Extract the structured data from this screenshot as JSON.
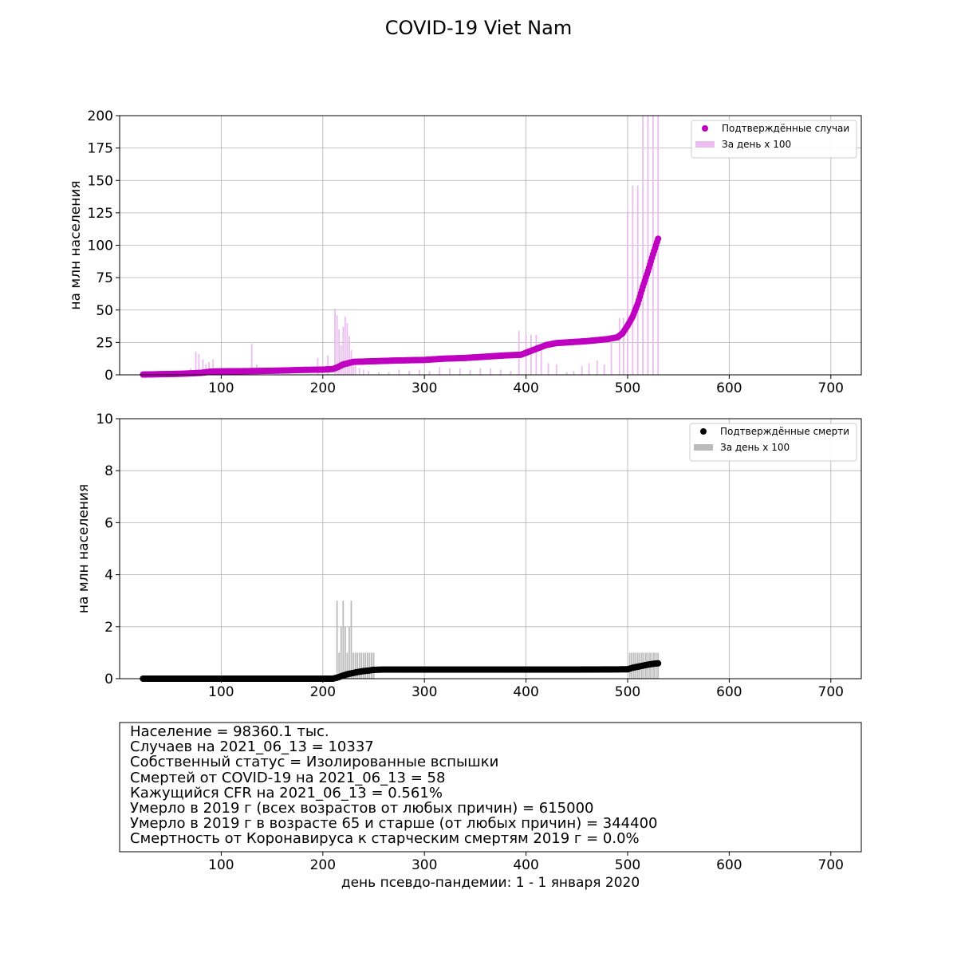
{
  "figure": {
    "title": "COVID-19 Viet Nam",
    "xlabel": "день псевдо-пандемии: 1 - 1 января 2020"
  },
  "colors": {
    "cases_points": "#c000c0",
    "cases_bars": "#eabcef",
    "deaths_points": "#000000",
    "deaths_bars": "#bbbbbb",
    "grid": "#b0b0b0"
  },
  "info_lines": [
    "Население = 98360.1 тыс.",
    "Случаев на 2021_06_13 = 10337",
    "Собственный статус = Изолированные вспышки",
    "Смертей от COVID-19 на 2021_06_13 = 58",
    "Кажущийся CFR на 2021_06_13 = 0.561%",
    "Умерло в 2019 г (всех возрастов от любых причин) = 615000",
    "Умерло в 2019 г в возрасте 65 и старше (от любых причин) = 344400",
    "Смертность от Коронавируса к старческим смертям 2019 г = 0.0%"
  ],
  "chart_data": [
    {
      "type": "scatter+bar",
      "ylabel": "на млн населения",
      "xlim": [
        0,
        730
      ],
      "ylim": [
        0,
        200
      ],
      "xticks": [
        100,
        200,
        300,
        400,
        500,
        600,
        700
      ],
      "yticks": [
        0,
        25,
        50,
        75,
        100,
        125,
        150,
        175,
        200
      ],
      "grid": true,
      "legend_position": "top-right",
      "series": [
        {
          "name": "Подтверждённые случаи",
          "kind": "cumulative",
          "points": [
            [
              23,
              0.2
            ],
            [
              40,
              0.5
            ],
            [
              60,
              0.8
            ],
            [
              80,
              1.5
            ],
            [
              90,
              2.5
            ],
            [
              100,
              2.7
            ],
            [
              120,
              2.8
            ],
            [
              140,
              3.0
            ],
            [
              160,
              3.3
            ],
            [
              180,
              3.8
            ],
            [
              200,
              4.0
            ],
            [
              210,
              4.5
            ],
            [
              215,
              6
            ],
            [
              220,
              8
            ],
            [
              230,
              10
            ],
            [
              250,
              10.5
            ],
            [
              270,
              11
            ],
            [
              300,
              11.5
            ],
            [
              320,
              12.5
            ],
            [
              340,
              13
            ],
            [
              360,
              14
            ],
            [
              380,
              15
            ],
            [
              395,
              15.5
            ],
            [
              400,
              17
            ],
            [
              410,
              20
            ],
            [
              420,
              23
            ],
            [
              430,
              24.5
            ],
            [
              440,
              25
            ],
            [
              460,
              26
            ],
            [
              480,
              27.5
            ],
            [
              490,
              29
            ],
            [
              495,
              32
            ],
            [
              500,
              38
            ],
            [
              505,
              45
            ],
            [
              510,
              55
            ],
            [
              515,
              68
            ],
            [
              520,
              80
            ],
            [
              525,
              93
            ],
            [
              530,
              105
            ]
          ]
        },
        {
          "name": "За день x 100",
          "kind": "daily_bars",
          "bars": [
            [
              70,
              5
            ],
            [
              75,
              18
            ],
            [
              78,
              16
            ],
            [
              82,
              12
            ],
            [
              85,
              8
            ],
            [
              88,
              10
            ],
            [
              92,
              12
            ],
            [
              130,
              24
            ],
            [
              135,
              8
            ],
            [
              195,
              13
            ],
            [
              205,
              15
            ],
            [
              212,
              51
            ],
            [
              214,
              46
            ],
            [
              216,
              35
            ],
            [
              218,
              23
            ],
            [
              220,
              37
            ],
            [
              222,
              45
            ],
            [
              224,
              40
            ],
            [
              226,
              30
            ],
            [
              228,
              19
            ],
            [
              230,
              12
            ],
            [
              232,
              8
            ],
            [
              236,
              5
            ],
            [
              240,
              4
            ],
            [
              245,
              3
            ],
            [
              255,
              2
            ],
            [
              265,
              2
            ],
            [
              275,
              4
            ],
            [
              285,
              3
            ],
            [
              295,
              4
            ],
            [
              305,
              3
            ],
            [
              315,
              6
            ],
            [
              325,
              5
            ],
            [
              335,
              5
            ],
            [
              345,
              4
            ],
            [
              355,
              5
            ],
            [
              365,
              5
            ],
            [
              375,
              4
            ],
            [
              385,
              3
            ],
            [
              393,
              34
            ],
            [
              400,
              31
            ],
            [
              405,
              31
            ],
            [
              410,
              31
            ],
            [
              415,
              20
            ],
            [
              422,
              9
            ],
            [
              430,
              8
            ],
            [
              440,
              2
            ],
            [
              447,
              3
            ],
            [
              455,
              7
            ],
            [
              462,
              9
            ],
            [
              470,
              11
            ],
            [
              477,
              8
            ],
            [
              484,
              25
            ],
            [
              492,
              44
            ],
            [
              496,
              44
            ],
            [
              500,
              125
            ],
            [
              505,
              146
            ],
            [
              510,
              146
            ],
            [
              515,
              200
            ],
            [
              520,
              200
            ],
            [
              525,
              200
            ],
            [
              530,
              200
            ]
          ]
        }
      ]
    },
    {
      "type": "scatter+bar",
      "ylabel": "на млн населения",
      "xlim": [
        0,
        730
      ],
      "ylim": [
        0,
        10
      ],
      "xticks": [
        100,
        200,
        300,
        400,
        500,
        600,
        700
      ],
      "yticks": [
        0,
        2,
        4,
        6,
        8,
        10
      ],
      "grid": true,
      "legend_position": "top-right",
      "series": [
        {
          "name": "Подтверждённые смерти",
          "kind": "cumulative",
          "points": [
            [
              23,
              0
            ],
            [
              100,
              0
            ],
            [
              200,
              0
            ],
            [
              210,
              0
            ],
            [
              215,
              0.05
            ],
            [
              220,
              0.12
            ],
            [
              225,
              0.18
            ],
            [
              230,
              0.22
            ],
            [
              235,
              0.26
            ],
            [
              240,
              0.29
            ],
            [
              245,
              0.31
            ],
            [
              250,
              0.34
            ],
            [
              260,
              0.35
            ],
            [
              300,
              0.35
            ],
            [
              350,
              0.35
            ],
            [
              400,
              0.35
            ],
            [
              450,
              0.35
            ],
            [
              500,
              0.36
            ],
            [
              505,
              0.42
            ],
            [
              510,
              0.46
            ],
            [
              515,
              0.5
            ],
            [
              520,
              0.54
            ],
            [
              525,
              0.57
            ],
            [
              530,
              0.59
            ]
          ]
        },
        {
          "name": "За день x 100",
          "kind": "daily_bars",
          "bars": [
            [
              214,
              3
            ],
            [
              216,
              1
            ],
            [
              218,
              2
            ],
            [
              220,
              3
            ],
            [
              222,
              2
            ],
            [
              224,
              1
            ],
            [
              226,
              2
            ],
            [
              228,
              3
            ],
            [
              230,
              1
            ],
            [
              232,
              1
            ],
            [
              234,
              1
            ],
            [
              236,
              1
            ],
            [
              238,
              1
            ],
            [
              240,
              1
            ],
            [
              242,
              1
            ],
            [
              244,
              1
            ],
            [
              246,
              1
            ],
            [
              248,
              1
            ],
            [
              250,
              1
            ],
            [
              502,
              1
            ],
            [
              504,
              1
            ],
            [
              506,
              1
            ],
            [
              508,
              1
            ],
            [
              510,
              1
            ],
            [
              512,
              1
            ],
            [
              514,
              1
            ],
            [
              516,
              1
            ],
            [
              518,
              1
            ],
            [
              520,
              1
            ],
            [
              522,
              1
            ],
            [
              524,
              1
            ],
            [
              526,
              1
            ],
            [
              528,
              1
            ],
            [
              530,
              1
            ]
          ]
        }
      ]
    }
  ]
}
